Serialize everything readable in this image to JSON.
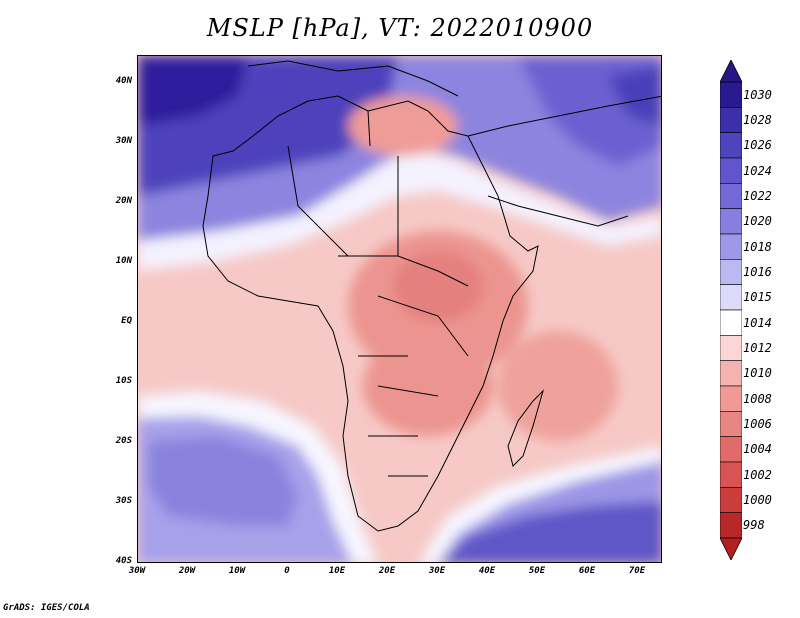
{
  "title": "MSLP [hPa], VT: 2022010900",
  "credit": "GrADS: IGES/COLA",
  "map": {
    "projection": "latlon",
    "lon_range": [
      -30,
      75
    ],
    "lat_range": [
      -40,
      45
    ],
    "lat_ticks": [
      "40N",
      "30N",
      "20N",
      "10N",
      "EQ",
      "10S",
      "20S",
      "30S",
      "40S"
    ],
    "lon_ticks": [
      "30W",
      "20W",
      "10W",
      "0",
      "10E",
      "20E",
      "30E",
      "40E",
      "50E",
      "60E",
      "70E"
    ]
  },
  "colorbar": {
    "labels": [
      "1030",
      "1028",
      "1026",
      "1024",
      "1022",
      "1020",
      "1018",
      "1016",
      "1015",
      "1014",
      "1012",
      "1010",
      "1008",
      "1006",
      "1004",
      "1002",
      "1000",
      "998"
    ],
    "colors": [
      "#2a1a8f",
      "#3d2fa8",
      "#4e45bd",
      "#6055cc",
      "#7269d6",
      "#877fdf",
      "#9e98e8",
      "#bcb9f0",
      "#dcdaf8",
      "#ffffff",
      "#fbd6d4",
      "#f5b3b0",
      "#ef9a96",
      "#e88683",
      "#e06c6a",
      "#d85454",
      "#cc3c3c",
      "#b82828"
    ],
    "top_color": "#27168a",
    "bottom_color": "#b3201f"
  }
}
